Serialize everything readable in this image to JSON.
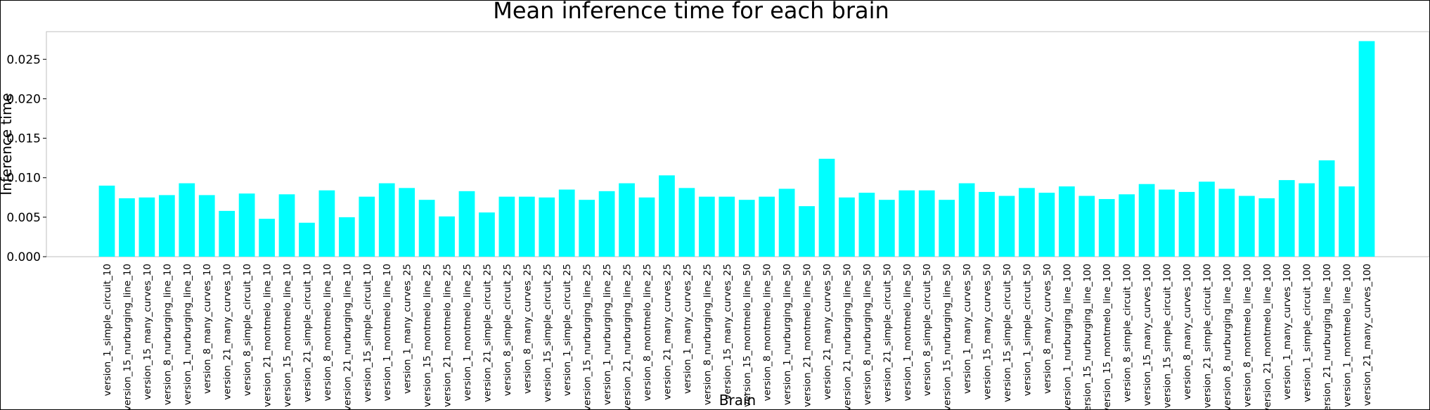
{
  "chart_data": {
    "type": "bar",
    "title": "Mean inference time for each brain",
    "xlabel": "Brain",
    "ylabel": "Inference time",
    "ylim": [
      0,
      0.0285
    ],
    "yticks": [
      0.0,
      0.005,
      0.01,
      0.015,
      0.02,
      0.025
    ],
    "ytick_labels": [
      "0.000",
      "0.005",
      "0.010",
      "0.015",
      "0.020",
      "0.025"
    ],
    "grid": false,
    "bar_color": "#00ffff",
    "categories": [
      "version_1_simple_circuit_10",
      "version_15_nurburging_line_10",
      "version_15_many_curves_10",
      "version_8_nurburging_line_10",
      "version_1_nurburging_line_10",
      "version_8_many_curves_10",
      "version_21_many_curves_10",
      "version_8_simple_circuit_10",
      "version_21_montmelo_line_10",
      "version_15_montmelo_line_10",
      "version_21_simple_circuit_10",
      "version_8_montmelo_line_10",
      "version_21_nurburging_line_10",
      "version_15_simple_circuit_10",
      "version_1_montmelo_line_10",
      "version_1_many_curves_25",
      "version_15_montmelo_line_25",
      "version_21_montmelo_line_25",
      "version_1_montmelo_line_25",
      "version_21_simple_circuit_25",
      "version_8_simple_circuit_25",
      "version_8_many_curves_25",
      "version_15_simple_circuit_25",
      "version_1_simple_circuit_25",
      "version_15_nurburging_line_25",
      "version_1_nurburging_line_25",
      "version_21_nurburging_line_25",
      "version_8_montmelo_line_25",
      "version_21_many_curves_25",
      "version_1_many_curves_25",
      "version_8_nurburging_line_25",
      "version_15_many_curves_25",
      "version_15_montmelo_line_50",
      "version_8_montmelo_line_50",
      "version_1_nurburging_line_50",
      "version_21_montmelo_line_50",
      "version_21_many_curves_50",
      "version_21_nurburging_line_50",
      "version_8_nurburging_line_50",
      "version_21_simple_circuit_50",
      "version_1_montmelo_line_50",
      "version_8_simple_circuit_50",
      "version_15_nurburging_line_50",
      "version_1_many_curves_50",
      "version_15_many_curves_50",
      "version_15_simple_circuit_50",
      "version_1_simple_circuit_50",
      "version_8_many_curves_50",
      "version_1_nurburging_line_100",
      "version_15_nurburging_line_100",
      "version_15_montmelo_line_100",
      "version_8_simple_circuit_100",
      "version_15_many_curves_100",
      "version_15_simple_circuit_100",
      "version_8_many_curves_100",
      "version_21_simple_circuit_100",
      "version_8_nurburging_line_100",
      "version_8_montmelo_line_100",
      "version_21_montmelo_line_100",
      "version_1_many_curves_100",
      "version_1_simple_circuit_100",
      "version_21_nurburging_line_100",
      "version_1_montmelo_line_100",
      "version_21_many_curves_100"
    ],
    "values": [
      0.009,
      0.0074,
      0.0075,
      0.0078,
      0.0093,
      0.0078,
      0.0058,
      0.008,
      0.0048,
      0.0079,
      0.0043,
      0.0084,
      0.005,
      0.0076,
      0.0093,
      0.0087,
      0.0072,
      0.0051,
      0.0083,
      0.0056,
      0.0076,
      0.0076,
      0.0075,
      0.0085,
      0.0072,
      0.0083,
      0.0093,
      0.0075,
      0.0103,
      0.0087,
      0.0076,
      0.0076,
      0.0072,
      0.0076,
      0.0086,
      0.0064,
      0.0124,
      0.0075,
      0.0081,
      0.0072,
      0.0084,
      0.0084,
      0.0072,
      0.0093,
      0.0082,
      0.0077,
      0.0087,
      0.0081,
      0.0089,
      0.0077,
      0.0073,
      0.0079,
      0.0092,
      0.0085,
      0.0082,
      0.0095,
      0.0086,
      0.0077,
      0.0074,
      0.0097,
      0.0093,
      0.0122,
      0.0089,
      0.0273
    ]
  }
}
